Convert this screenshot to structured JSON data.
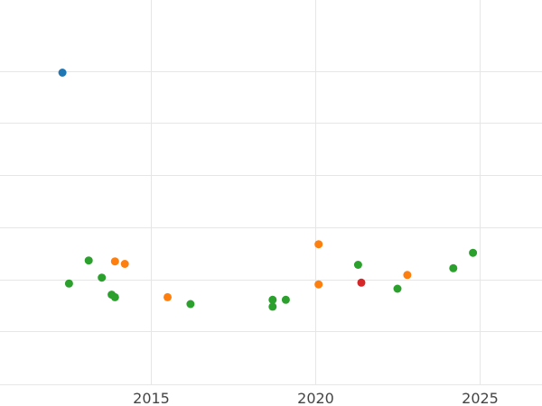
{
  "chart_data": {
    "type": "scatter",
    "title": "",
    "xlabel": "",
    "ylabel": "",
    "xlim": [
      2010.4,
      2026.9
    ],
    "ylim": [
      0,
      450
    ],
    "x_ticks": [
      2015,
      2020,
      2025
    ],
    "x_tick_labels": [
      "2015",
      "2020",
      "2025"
    ],
    "y_gridlines": [
      0,
      62,
      123,
      184,
      245,
      306,
      367
    ],
    "grid": true,
    "legend": "none",
    "series": [
      {
        "color": "#1f77b4",
        "points": [
          {
            "x": 2012.3,
            "y": 365
          }
        ]
      },
      {
        "color": "#2ca02c",
        "points": [
          {
            "x": 2012.5,
            "y": 118
          },
          {
            "x": 2013.1,
            "y": 145
          },
          {
            "x": 2013.5,
            "y": 125
          },
          {
            "x": 2013.8,
            "y": 105
          },
          {
            "x": 2013.9,
            "y": 102
          },
          {
            "x": 2016.2,
            "y": 94
          },
          {
            "x": 2018.7,
            "y": 99
          },
          {
            "x": 2018.7,
            "y": 91
          },
          {
            "x": 2019.1,
            "y": 99
          },
          {
            "x": 2021.3,
            "y": 140
          },
          {
            "x": 2022.5,
            "y": 112
          },
          {
            "x": 2024.2,
            "y": 136
          },
          {
            "x": 2024.8,
            "y": 154
          }
        ]
      },
      {
        "color": "#ff7f0e",
        "points": [
          {
            "x": 2013.9,
            "y": 144
          },
          {
            "x": 2014.2,
            "y": 141
          },
          {
            "x": 2015.5,
            "y": 102
          },
          {
            "x": 2020.1,
            "y": 164
          },
          {
            "x": 2020.1,
            "y": 117
          },
          {
            "x": 2022.8,
            "y": 128
          }
        ]
      },
      {
        "color": "#d62728",
        "points": [
          {
            "x": 2021.4,
            "y": 119
          }
        ]
      }
    ]
  }
}
